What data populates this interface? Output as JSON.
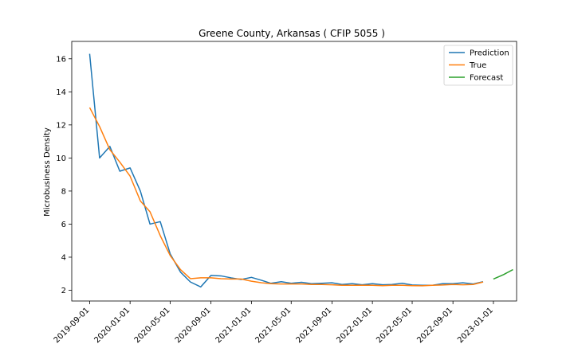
{
  "chart_data": {
    "type": "line",
    "title": "Greene County, Arkansas ( CFIP 5055 )",
    "xlabel": "",
    "ylabel": "Microbusiness Density",
    "x_ticks": [
      "2019-09-01",
      "2020-01-01",
      "2020-05-01",
      "2020-09-01",
      "2021-01-01",
      "2021-05-01",
      "2021-09-01",
      "2022-01-01",
      "2022-05-01",
      "2022-09-01",
      "2023-01-01"
    ],
    "y_ticks": [
      2,
      4,
      6,
      8,
      10,
      12,
      14,
      16
    ],
    "xlim": [
      "2019-07-09",
      "2023-03-12"
    ],
    "ylim": [
      1.35,
      17.05
    ],
    "grid": false,
    "legend_position": "top-right",
    "series": [
      {
        "name": "Prediction",
        "color": "#1f77b4",
        "points": [
          [
            "2019-09-01",
            16.3
          ],
          [
            "2019-10-01",
            10.0
          ],
          [
            "2019-11-01",
            10.7
          ],
          [
            "2019-12-01",
            9.2
          ],
          [
            "2020-01-01",
            9.4
          ],
          [
            "2020-02-01",
            8.0
          ],
          [
            "2020-03-01",
            6.0
          ],
          [
            "2020-04-01",
            6.15
          ],
          [
            "2020-05-01",
            4.2
          ],
          [
            "2020-06-01",
            3.1
          ],
          [
            "2020-07-01",
            2.5
          ],
          [
            "2020-08-01",
            2.2
          ],
          [
            "2020-09-01",
            2.9
          ],
          [
            "2020-10-01",
            2.87
          ],
          [
            "2020-11-01",
            2.75
          ],
          [
            "2020-12-01",
            2.65
          ],
          [
            "2021-01-01",
            2.78
          ],
          [
            "2021-02-01",
            2.6
          ],
          [
            "2021-03-01",
            2.42
          ],
          [
            "2021-04-01",
            2.52
          ],
          [
            "2021-05-01",
            2.42
          ],
          [
            "2021-06-01",
            2.48
          ],
          [
            "2021-07-01",
            2.4
          ],
          [
            "2021-08-01",
            2.42
          ],
          [
            "2021-09-01",
            2.45
          ],
          [
            "2021-10-01",
            2.35
          ],
          [
            "2021-11-01",
            2.4
          ],
          [
            "2021-12-01",
            2.33
          ],
          [
            "2022-01-01",
            2.4
          ],
          [
            "2022-02-01",
            2.33
          ],
          [
            "2022-03-01",
            2.35
          ],
          [
            "2022-04-01",
            2.42
          ],
          [
            "2022-05-01",
            2.32
          ],
          [
            "2022-06-01",
            2.3
          ],
          [
            "2022-07-01",
            2.3
          ],
          [
            "2022-08-01",
            2.4
          ],
          [
            "2022-09-01",
            2.4
          ],
          [
            "2022-10-01",
            2.45
          ],
          [
            "2022-11-01",
            2.38
          ],
          [
            "2022-12-01",
            2.52
          ]
        ]
      },
      {
        "name": "True",
        "color": "#ff7f0e",
        "points": [
          [
            "2019-09-01",
            13.05
          ],
          [
            "2019-10-01",
            11.9
          ],
          [
            "2019-11-01",
            10.5
          ],
          [
            "2019-12-01",
            9.75
          ],
          [
            "2020-01-01",
            8.9
          ],
          [
            "2020-02-01",
            7.4
          ],
          [
            "2020-03-01",
            6.75
          ],
          [
            "2020-04-01",
            5.3
          ],
          [
            "2020-05-01",
            4.1
          ],
          [
            "2020-06-01",
            3.25
          ],
          [
            "2020-07-01",
            2.7
          ],
          [
            "2020-08-01",
            2.75
          ],
          [
            "2020-09-01",
            2.75
          ],
          [
            "2020-10-01",
            2.7
          ],
          [
            "2020-11-01",
            2.68
          ],
          [
            "2020-12-01",
            2.68
          ],
          [
            "2021-01-01",
            2.55
          ],
          [
            "2021-02-01",
            2.45
          ],
          [
            "2021-03-01",
            2.4
          ],
          [
            "2021-04-01",
            2.38
          ],
          [
            "2021-05-01",
            2.38
          ],
          [
            "2021-06-01",
            2.38
          ],
          [
            "2021-07-01",
            2.35
          ],
          [
            "2021-08-01",
            2.35
          ],
          [
            "2021-09-01",
            2.33
          ],
          [
            "2021-10-01",
            2.3
          ],
          [
            "2021-11-01",
            2.3
          ],
          [
            "2021-12-01",
            2.3
          ],
          [
            "2022-01-01",
            2.3
          ],
          [
            "2022-02-01",
            2.28
          ],
          [
            "2022-03-01",
            2.3
          ],
          [
            "2022-04-01",
            2.3
          ],
          [
            "2022-05-01",
            2.28
          ],
          [
            "2022-06-01",
            2.27
          ],
          [
            "2022-07-01",
            2.3
          ],
          [
            "2022-08-01",
            2.32
          ],
          [
            "2022-09-01",
            2.35
          ],
          [
            "2022-10-01",
            2.33
          ],
          [
            "2022-11-01",
            2.35
          ],
          [
            "2022-12-01",
            2.5
          ]
        ]
      },
      {
        "name": "Forecast",
        "color": "#2ca02c",
        "points": [
          [
            "2023-01-01",
            2.68
          ],
          [
            "2023-02-01",
            2.95
          ],
          [
            "2023-03-01",
            3.25
          ]
        ]
      }
    ]
  }
}
